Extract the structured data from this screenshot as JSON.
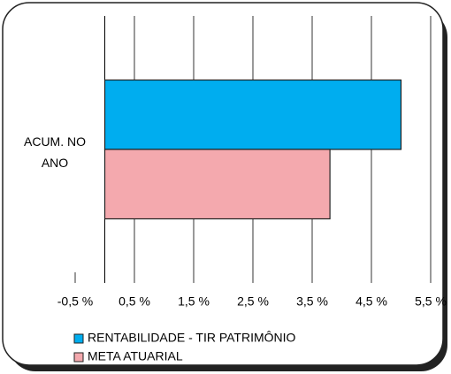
{
  "chart_data": {
    "type": "barh",
    "categories": [
      "ACUM. NO ANO"
    ],
    "series": [
      {
        "name": "RENTABILIDADE - TIR PATRIMÔNIO",
        "color": "#00adef",
        "values": [
          5.0
        ]
      },
      {
        "name": "META ATUARIAL",
        "color": "#f4a9ae",
        "values": [
          3.8
        ]
      }
    ],
    "xlim": [
      -0.5,
      5.5
    ],
    "xticks": [
      {
        "value": -0.5,
        "label": "-0,5 %"
      },
      {
        "value": 0.5,
        "label": "0,5 %"
      },
      {
        "value": 1.5,
        "label": "1,5 %"
      },
      {
        "value": 2.5,
        "label": "2,5 %"
      },
      {
        "value": 3.5,
        "label": "3,5 %"
      },
      {
        "value": 4.5,
        "label": "4,5 %"
      },
      {
        "value": 5.5,
        "label": "5,5 %"
      }
    ],
    "grid": true,
    "legend": "bottom"
  }
}
